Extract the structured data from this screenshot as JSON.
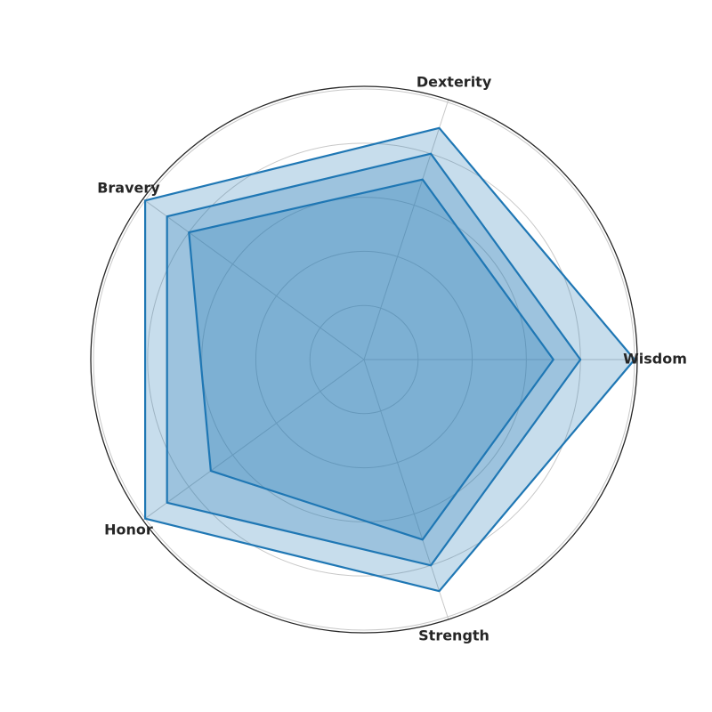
{
  "chart_data": {
    "type": "radar",
    "title": "",
    "axes": [
      "Wisdom",
      "Dexterity",
      "Bravery",
      "Honor",
      "Strength"
    ],
    "range": [
      0,
      10.1
    ],
    "grid_rings": [
      2,
      4,
      6,
      8,
      10
    ],
    "grid": true,
    "legend": "none",
    "series": [
      {
        "values": [
          10,
          9,
          10,
          10,
          9
        ],
        "color": "#1f77b4"
      },
      {
        "values": [
          8,
          8,
          9,
          9,
          8
        ],
        "color": "#1f77b4"
      },
      {
        "values": [
          7,
          7,
          8,
          7,
          7
        ],
        "color": "#1f77b4"
      }
    ],
    "colors": {
      "series": "#1f77b4",
      "fill_opacity": 0.25,
      "grid": "#c8c8c8",
      "frame": "#262626",
      "text": "#262626"
    }
  }
}
